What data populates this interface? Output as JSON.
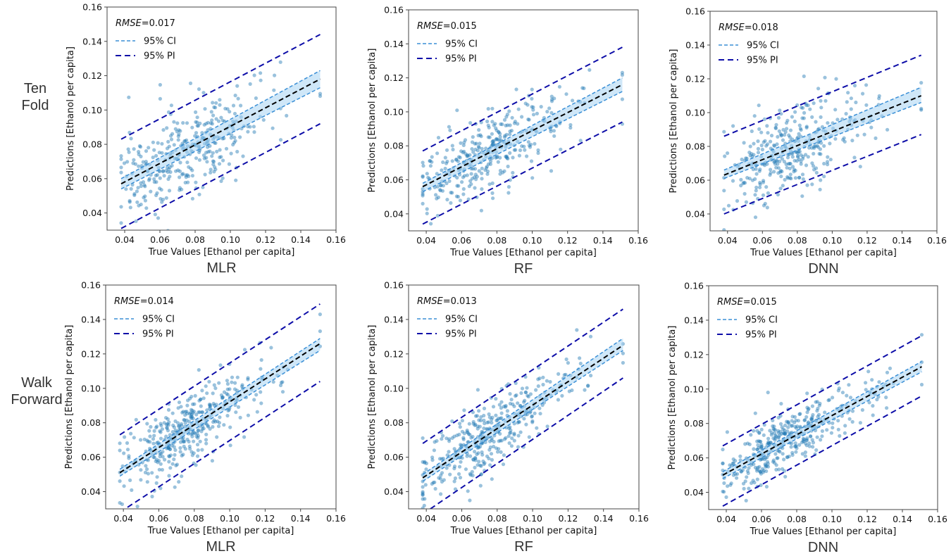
{
  "row_labels": [
    {
      "line1": "Ten",
      "line2": "Fold"
    },
    {
      "line1": "Walk",
      "line2": "Forward"
    }
  ],
  "colors": {
    "scatter": "#1f77b4",
    "fit": "#000000",
    "ci": "#3a8fd6",
    "ci_fill": "#a8d4f2",
    "pi": "#0d0da8",
    "axes": "#444444"
  },
  "chart_data": [
    {
      "type": "scatter",
      "row": "Ten Fold",
      "title": "MLR",
      "xlabel": "True Values [Ethanol per capita]",
      "ylabel": "Predictions [Ethanol per capita]",
      "xlim": [
        0.03,
        0.16
      ],
      "ylim": [
        0.03,
        0.16
      ],
      "xticks": [
        "0.04",
        "0.06",
        "0.08",
        "0.10",
        "0.12",
        "0.14",
        "0.16"
      ],
      "yticks": [
        "0.04",
        "0.06",
        "0.08",
        "0.10",
        "0.12",
        "0.14",
        "0.16"
      ],
      "annotation": {
        "metric": "RMSE",
        "value": "=0.017"
      },
      "legend": [
        "95% CI",
        "95% PI"
      ],
      "legend_position": "top-left",
      "fit_line": {
        "x": [
          0.038,
          0.151
        ],
        "y": [
          0.057,
          0.118
        ]
      },
      "ci": {
        "lower": [
          0.054,
          0.113
        ],
        "upper": [
          0.06,
          0.123
        ]
      },
      "pi": {
        "lower": [
          0.031,
          0.092
        ],
        "upper": [
          0.083,
          0.144
        ]
      },
      "points": {
        "n": 340,
        "x_range": [
          0.038,
          0.151
        ],
        "x_center": 0.075,
        "slope": 0.54,
        "intercept": 0.036,
        "noise": 0.013,
        "seed": 11
      }
    },
    {
      "type": "scatter",
      "row": "Ten Fold",
      "title": "RF",
      "xlabel": "True Values [Ethanol per capita]",
      "ylabel": "Predictions [Ethanol per capita]",
      "xlim": [
        0.03,
        0.16
      ],
      "ylim": [
        0.03,
        0.16
      ],
      "xticks": [
        "0.04",
        "0.06",
        "0.08",
        "0.10",
        "0.12",
        "0.14",
        "0.16"
      ],
      "yticks": [
        "0.04",
        "0.06",
        "0.08",
        "0.10",
        "0.12",
        "0.14",
        "0.16"
      ],
      "annotation": {
        "metric": "RMSE",
        "value": "=0.015"
      },
      "legend": [
        "95% CI",
        "95% PI"
      ],
      "legend_position": "top-left",
      "fit_line": {
        "x": [
          0.038,
          0.151
        ],
        "y": [
          0.056,
          0.116
        ]
      },
      "ci": {
        "lower": [
          0.053,
          0.112
        ],
        "upper": [
          0.058,
          0.12
        ]
      },
      "pi": {
        "lower": [
          0.034,
          0.094
        ],
        "upper": [
          0.077,
          0.138
        ]
      },
      "points": {
        "n": 340,
        "x_range": [
          0.038,
          0.151
        ],
        "x_center": 0.072,
        "slope": 0.53,
        "intercept": 0.036,
        "noise": 0.011,
        "seed": 23
      }
    },
    {
      "type": "scatter",
      "row": "Ten Fold",
      "title": "DNN",
      "xlabel": "True Values [Ethanol per capita]",
      "ylabel": "Predictions [Ethanol per capita]",
      "xlim": [
        0.03,
        0.16
      ],
      "ylim": [
        0.03,
        0.16
      ],
      "xticks": [
        "0.04",
        "0.06",
        "0.08",
        "0.10",
        "0.12",
        "0.14",
        "0.16"
      ],
      "yticks": [
        "0.04",
        "0.06",
        "0.08",
        "0.10",
        "0.12",
        "0.14",
        "0.16"
      ],
      "annotation": {
        "metric": "RMSE",
        "value": "=0.018"
      },
      "legend": [
        "95% CI",
        "95% PI"
      ],
      "legend_position": "top-left",
      "fit_line": {
        "x": [
          0.038,
          0.151
        ],
        "y": [
          0.063,
          0.11
        ]
      },
      "ci": {
        "lower": [
          0.061,
          0.106
        ],
        "upper": [
          0.066,
          0.115
        ]
      },
      "pi": {
        "lower": [
          0.04,
          0.087
        ],
        "upper": [
          0.086,
          0.134
        ]
      },
      "points": {
        "n": 340,
        "x_range": [
          0.038,
          0.151
        ],
        "x_center": 0.075,
        "slope": 0.42,
        "intercept": 0.047,
        "noise": 0.013,
        "seed": 37
      }
    },
    {
      "type": "scatter",
      "row": "Walk Forward",
      "title": "MLR",
      "xlabel": "True Values [Ethanol per capita]",
      "ylabel": "Predictions [Ethanol per capita]",
      "xlim": [
        0.03,
        0.16
      ],
      "ylim": [
        0.03,
        0.16
      ],
      "xticks": [
        "0.04",
        "0.06",
        "0.08",
        "0.10",
        "0.12",
        "0.14",
        "0.16"
      ],
      "yticks": [
        "0.04",
        "0.06",
        "0.08",
        "0.10",
        "0.12",
        "0.14",
        "0.16"
      ],
      "annotation": {
        "metric": "RMSE",
        "value": "=0.014"
      },
      "legend": [
        "95% CI",
        "95% PI"
      ],
      "legend_position": "top-left",
      "fit_line": {
        "x": [
          0.038,
          0.151
        ],
        "y": [
          0.051,
          0.126
        ]
      },
      "ci": {
        "lower": [
          0.049,
          0.122
        ],
        "upper": [
          0.053,
          0.129
        ]
      },
      "pi": {
        "lower": [
          0.028,
          0.104
        ],
        "upper": [
          0.073,
          0.149
        ]
      },
      "points": {
        "n": 380,
        "x_range": [
          0.038,
          0.151
        ],
        "x_center": 0.075,
        "slope": 0.66,
        "intercept": 0.026,
        "noise": 0.011,
        "seed": 53
      }
    },
    {
      "type": "scatter",
      "row": "Walk Forward",
      "title": "RF",
      "xlabel": "True Values [Ethanol per capita]",
      "ylabel": "Predictions [Ethanol per capita]",
      "xlim": [
        0.03,
        0.16
      ],
      "ylim": [
        0.03,
        0.16
      ],
      "xticks": [
        "0.04",
        "0.06",
        "0.08",
        "0.10",
        "0.12",
        "0.14",
        "0.16"
      ],
      "yticks": [
        "0.04",
        "0.06",
        "0.08",
        "0.10",
        "0.12",
        "0.14",
        "0.16"
      ],
      "annotation": {
        "metric": "RMSE",
        "value": "=0.013"
      },
      "legend": [
        "95% CI",
        "95% PI"
      ],
      "legend_position": "top-left",
      "fit_line": {
        "x": [
          0.038,
          0.151
        ],
        "y": [
          0.048,
          0.125
        ]
      },
      "ci": {
        "lower": [
          0.046,
          0.122
        ],
        "upper": [
          0.05,
          0.129
        ]
      },
      "pi": {
        "lower": [
          0.027,
          0.106
        ],
        "upper": [
          0.068,
          0.146
        ]
      },
      "points": {
        "n": 380,
        "x_range": [
          0.038,
          0.151
        ],
        "x_center": 0.072,
        "slope": 0.68,
        "intercept": 0.022,
        "noise": 0.01,
        "seed": 71
      }
    },
    {
      "type": "scatter",
      "row": "Walk Forward",
      "title": "DNN",
      "xlabel": "True Values [Ethanol per capita]",
      "ylabel": "Predictions [Ethanol per capita]",
      "xlim": [
        0.03,
        0.16
      ],
      "ylim": [
        0.03,
        0.16
      ],
      "xticks": [
        "0.04",
        "0.06",
        "0.08",
        "0.10",
        "0.12",
        "0.14",
        "0.16"
      ],
      "yticks": [
        "0.04",
        "0.06",
        "0.08",
        "0.10",
        "0.12",
        "0.14",
        "0.16"
      ],
      "annotation": {
        "metric": "RMSE",
        "value": "=0.015"
      },
      "legend": [
        "95% CI",
        "95% PI"
      ],
      "legend_position": "top-left",
      "fit_line": {
        "x": [
          0.038,
          0.151
        ],
        "y": [
          0.05,
          0.113
        ]
      },
      "ci": {
        "lower": [
          0.048,
          0.11
        ],
        "upper": [
          0.052,
          0.116
        ]
      },
      "pi": {
        "lower": [
          0.032,
          0.096
        ],
        "upper": [
          0.067,
          0.131
        ]
      },
      "points": {
        "n": 380,
        "x_range": [
          0.038,
          0.151
        ],
        "x_center": 0.072,
        "slope": 0.56,
        "intercept": 0.029,
        "noise": 0.009,
        "seed": 89
      }
    }
  ]
}
